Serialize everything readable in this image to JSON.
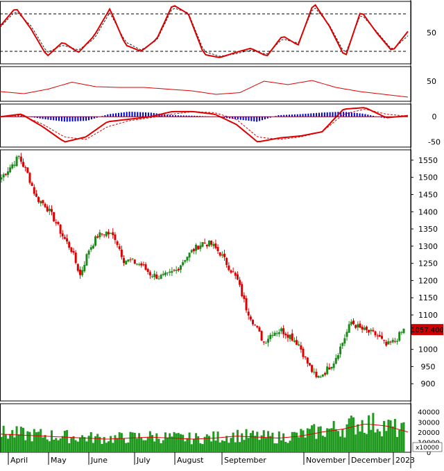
{
  "chart_data": {
    "type": "candlestick",
    "x_labels": [
      "April",
      "May",
      "June",
      "July",
      "August",
      "September",
      "November",
      "December",
      "2023"
    ],
    "price": {
      "ylim": [
        850,
        1580
      ],
      "ticks": [
        900,
        950,
        1000,
        1050,
        1100,
        1150,
        1200,
        1250,
        1300,
        1350,
        1400,
        1450,
        1500,
        1550
      ],
      "last_price_label": "1057.400",
      "last_price": 1057.4,
      "anchor_closes": [
        1500,
        1530,
        1560,
        1510,
        1440,
        1420,
        1380,
        1330,
        1290,
        1215,
        1290,
        1330,
        1340,
        1325,
        1260,
        1255,
        1245,
        1220,
        1210,
        1215,
        1230,
        1265,
        1290,
        1310,
        1305,
        1280,
        1240,
        1200,
        1120,
        1070,
        1020,
        1050,
        1055,
        1040,
        1015,
        960,
        915,
        935,
        965,
        1020,
        1080,
        1060,
        1050,
        1040,
        1010,
        1025,
        1057
      ]
    },
    "stochastic": {
      "ylim": [
        0,
        100
      ],
      "levels": [
        20,
        80
      ],
      "tick": 50,
      "k": [
        60,
        90,
        55,
        12,
        35,
        18,
        45,
        88,
        30,
        20,
        40,
        95,
        80,
        15,
        10,
        18,
        25,
        12,
        45,
        30,
        98,
        60,
        10,
        85,
        50,
        20,
        52
      ],
      "d": [
        58,
        85,
        60,
        18,
        30,
        22,
        40,
        82,
        35,
        22,
        38,
        90,
        82,
        20,
        12,
        16,
        22,
        15,
        40,
        33,
        92,
        62,
        15,
        80,
        52,
        22,
        45
      ]
    },
    "rsi": {
      "ylim": [
        0,
        100
      ],
      "tick": 50,
      "values": [
        28,
        22,
        35,
        55,
        42,
        40,
        40,
        35,
        30,
        20,
        25,
        58,
        48,
        60,
        40,
        28,
        20,
        12
      ]
    },
    "macd": {
      "ylim": [
        -60,
        25
      ],
      "ticks": [
        0,
        -50
      ],
      "macd": [
        0,
        5,
        -20,
        -50,
        -40,
        -10,
        -5,
        0,
        10,
        10,
        5,
        -15,
        -50,
        -42,
        -38,
        -30,
        15,
        18,
        -2,
        2
      ],
      "signal": [
        0,
        3,
        -15,
        -40,
        -45,
        -20,
        -8,
        -2,
        5,
        10,
        8,
        -5,
        -40,
        -45,
        -40,
        -30,
        5,
        15,
        5,
        1
      ],
      "histogram": [
        0,
        2,
        -5,
        -10,
        -8,
        5,
        10,
        8,
        3,
        2,
        0,
        -5,
        -10,
        3,
        5,
        8,
        10,
        6,
        -3,
        1
      ]
    },
    "volume": {
      "ylim": [
        0,
        48000
      ],
      "ticks": [
        "40000",
        "30000",
        "20000",
        "10000",
        "0"
      ],
      "unit_label": "x10000",
      "ma_values": [
        18000,
        17000,
        16000,
        15000,
        14000,
        13000,
        14000,
        15000,
        14000,
        13000,
        14000,
        16000,
        15000,
        14000,
        16000,
        20000,
        23000,
        28000,
        26000,
        20000
      ]
    }
  },
  "colors": {
    "up": "#1c8a1c",
    "down": "#dd0000",
    "stoch_k": "#dd0000",
    "stoch_d": "#222222",
    "rsi": "#dd0000",
    "macd_hist": "#0000cc",
    "volume": "#1f9a1f",
    "grid": "#cccccc",
    "last_price_bg": "#cc0000"
  }
}
